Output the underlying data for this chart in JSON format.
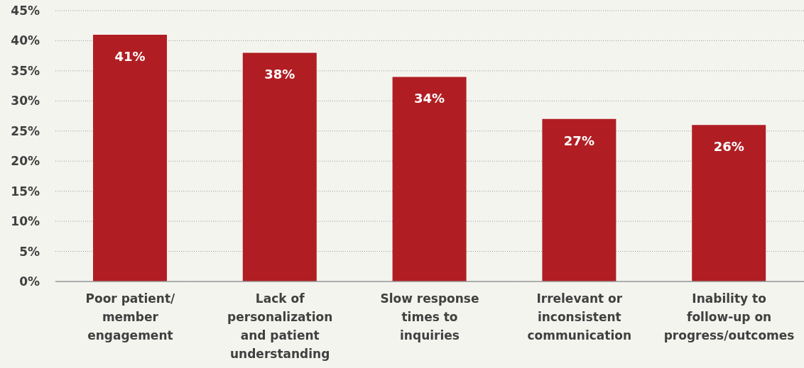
{
  "chart_data": {
    "type": "bar",
    "categories": [
      "Poor patient/ member engagement",
      "Lack of personalization and patient understanding",
      "Slow response times to inquiries",
      "Irrelevant or inconsistent communication",
      "Inability to follow-up on progress/outcomes"
    ],
    "values": [
      41,
      38,
      34,
      27,
      26
    ],
    "value_labels": [
      "41%",
      "38%",
      "34%",
      "27%",
      "26%"
    ],
    "color": "#b01e23",
    "ylim": [
      0,
      45
    ],
    "yticks": [
      {
        "value": 0,
        "label": "0%"
      },
      {
        "value": 5,
        "label": "5%"
      },
      {
        "value": 10,
        "label": "10%"
      },
      {
        "value": 15,
        "label": "15%"
      },
      {
        "value": 20,
        "label": "20%"
      },
      {
        "value": 25,
        "label": "25%"
      },
      {
        "value": 30,
        "label": "30%"
      },
      {
        "value": 35,
        "label": "35%"
      },
      {
        "value": 40,
        "label": "40%"
      },
      {
        "value": 45,
        "label": "45%"
      }
    ],
    "grid": "y"
  }
}
